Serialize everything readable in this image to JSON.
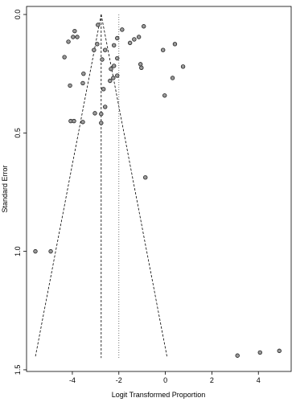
{
  "chart_data": {
    "type": "scatter",
    "x_label": "Logit Transformed Proportion",
    "y_label": "Standard Error",
    "x": [
      -2.9,
      -3.9,
      -3.97,
      -3.79,
      -4.17,
      -2.93,
      -0.93,
      -1.86,
      -1.14,
      -1.34,
      -1.52,
      -2.07,
      -2.21,
      0.41,
      -2.59,
      -3.07,
      -0.1,
      -2.07,
      -2.72,
      -4.34,
      -1.07,
      -1.03,
      0.76,
      -2.21,
      -2.34,
      -3.52,
      -2.07,
      0.31,
      -3.55,
      -2.24,
      -2.38,
      -4.1,
      -2.66,
      -0.03,
      -2.59,
      -3.03,
      -2.76,
      -4.07,
      -3.93,
      -3.55,
      -2.76,
      -0.86,
      -5.59,
      -4.93,
      4.07,
      4.9,
      3.1
    ],
    "values": [
      0.044,
      0.07,
      0.095,
      0.095,
      0.115,
      0.125,
      0.05,
      0.064,
      0.095,
      0.105,
      0.12,
      0.1,
      0.13,
      0.125,
      0.15,
      0.15,
      0.15,
      0.185,
      0.19,
      0.18,
      0.21,
      0.225,
      0.22,
      0.217,
      0.23,
      0.25,
      0.258,
      0.268,
      0.29,
      0.268,
      0.28,
      0.3,
      0.315,
      0.342,
      0.39,
      0.417,
      0.42,
      0.45,
      0.45,
      0.454,
      0.458,
      0.688,
      1.0,
      1.0,
      1.427,
      1.42,
      1.44
    ],
    "color": "#9a9a9a",
    "xlim": [
      -5.97,
      5.41
    ],
    "ylim": [
      -0.034,
      1.507
    ],
    "y_inverted": true,
    "xticks": [
      -4,
      -2,
      0,
      2,
      4
    ],
    "yticks": [
      {
        "value": 0,
        "label": "0.0"
      },
      {
        "value": 0.5,
        "label": "0.5"
      },
      {
        "value": 1,
        "label": "1.0"
      },
      {
        "value": 1.5,
        "label": "1.5"
      }
    ],
    "funnel_center": -2.76,
    "funnel_se_max": 1.45,
    "funnel_base": [
      -5.6,
      0.08
    ],
    "reference_line": -2.0
  }
}
